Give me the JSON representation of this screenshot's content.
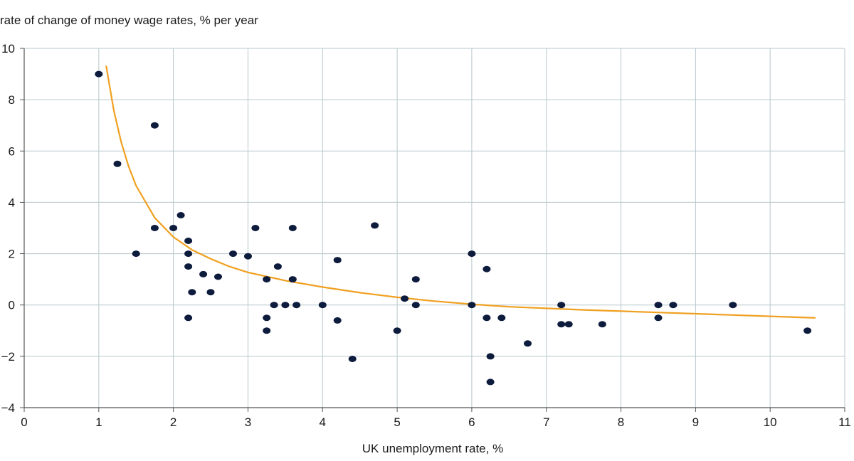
{
  "chart_data": {
    "type": "scatter",
    "title": "",
    "ylabel": "rate of change of money wage rates, % per year",
    "xlabel": "UK unemployment rate, %",
    "xlim": [
      0,
      11
    ],
    "ylim": [
      -4,
      10
    ],
    "xticks": [
      "0",
      "1",
      "2",
      "3",
      "4",
      "5",
      "6",
      "7",
      "8",
      "9",
      "10",
      "11"
    ],
    "yticks": [
      "−4",
      "−2",
      "0",
      "2",
      "4",
      "6",
      "8",
      "10"
    ],
    "grid": true,
    "colors": {
      "points": "#0d1b3d",
      "curve": "#f0a020",
      "grid": "#b7c7cc",
      "axis": "#555555"
    },
    "series": [
      {
        "type": "scatter",
        "points": [
          [
            1.0,
            9.0
          ],
          [
            1.25,
            5.5
          ],
          [
            1.5,
            2.0
          ],
          [
            1.75,
            7.0
          ],
          [
            1.75,
            3.0
          ],
          [
            2.0,
            3.0
          ],
          [
            2.1,
            3.5
          ],
          [
            2.2,
            2.5
          ],
          [
            2.2,
            2.0
          ],
          [
            2.2,
            1.5
          ],
          [
            2.2,
            -0.5
          ],
          [
            2.25,
            0.5
          ],
          [
            2.4,
            1.2
          ],
          [
            2.5,
            0.5
          ],
          [
            2.6,
            1.1
          ],
          [
            2.8,
            2.0
          ],
          [
            3.0,
            1.9
          ],
          [
            3.1,
            3.0
          ],
          [
            3.25,
            1.0
          ],
          [
            3.25,
            -0.5
          ],
          [
            3.25,
            -1.0
          ],
          [
            3.35,
            0.0
          ],
          [
            3.4,
            1.5
          ],
          [
            3.5,
            0.0
          ],
          [
            3.6,
            3.0
          ],
          [
            3.6,
            1.0
          ],
          [
            3.65,
            0.0
          ],
          [
            4.0,
            0.0
          ],
          [
            4.2,
            1.75
          ],
          [
            4.2,
            -0.6
          ],
          [
            4.4,
            -2.1
          ],
          [
            4.7,
            3.1
          ],
          [
            5.0,
            -1.0
          ],
          [
            5.1,
            0.25
          ],
          [
            5.25,
            1.0
          ],
          [
            5.25,
            0.0
          ],
          [
            6.0,
            2.0
          ],
          [
            6.0,
            0.0
          ],
          [
            6.2,
            1.4
          ],
          [
            6.2,
            -0.5
          ],
          [
            6.25,
            -2.0
          ],
          [
            6.25,
            -3.0
          ],
          [
            6.4,
            -0.5
          ],
          [
            6.75,
            -1.5
          ],
          [
            7.2,
            0.0
          ],
          [
            7.2,
            -0.75
          ],
          [
            7.3,
            -0.75
          ],
          [
            7.75,
            -0.75
          ],
          [
            8.5,
            0.0
          ],
          [
            8.5,
            -0.5
          ],
          [
            8.7,
            0.0
          ],
          [
            9.5,
            0.0
          ],
          [
            10.5,
            -1.0
          ]
        ]
      },
      {
        "type": "line",
        "points": [
          [
            1.1,
            9.3
          ],
          [
            1.2,
            7.6
          ],
          [
            1.3,
            6.35
          ],
          [
            1.4,
            5.4
          ],
          [
            1.5,
            4.65
          ],
          [
            1.75,
            3.4
          ],
          [
            2.0,
            2.65
          ],
          [
            2.25,
            2.15
          ],
          [
            2.5,
            1.8
          ],
          [
            2.75,
            1.5
          ],
          [
            3.0,
            1.27
          ],
          [
            3.5,
            0.95
          ],
          [
            4.0,
            0.7
          ],
          [
            4.5,
            0.48
          ],
          [
            5.0,
            0.3
          ],
          [
            5.5,
            0.15
          ],
          [
            6.0,
            0.03
          ],
          [
            6.5,
            -0.07
          ],
          [
            7.0,
            -0.13
          ],
          [
            7.5,
            -0.19
          ],
          [
            8.0,
            -0.24
          ],
          [
            8.5,
            -0.29
          ],
          [
            9.0,
            -0.34
          ],
          [
            9.5,
            -0.39
          ],
          [
            10.0,
            -0.44
          ],
          [
            10.6,
            -0.5
          ]
        ]
      }
    ]
  }
}
